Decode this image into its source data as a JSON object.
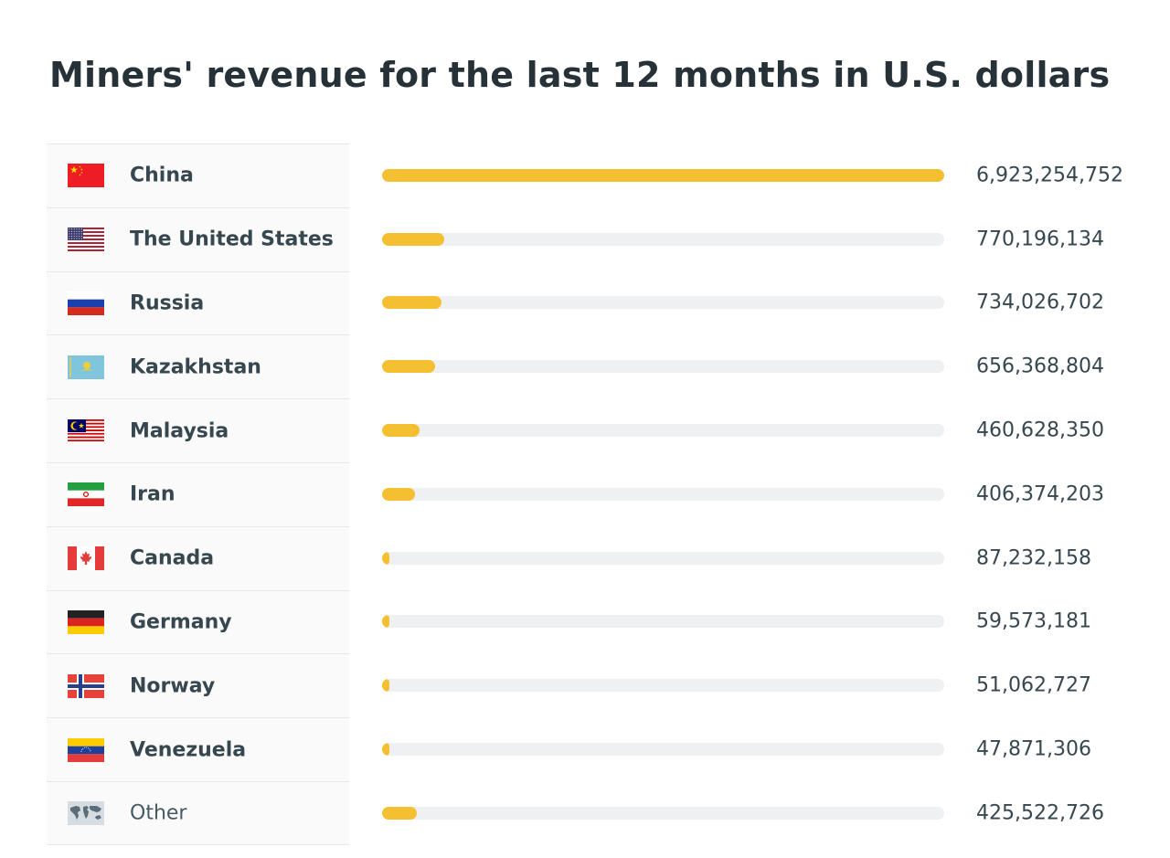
{
  "title": "Miners' revenue for the last 12 months in U.S. dollars",
  "colors": {
    "bar": "#f5bf32",
    "track": "#eef0f1",
    "label_background": "#fafafa",
    "text": "#37474f"
  },
  "chart_data": {
    "type": "bar",
    "orientation": "horizontal",
    "title": "Miners' revenue for the last 12 months in U.S. dollars",
    "categories": [
      "China",
      "The United States",
      "Russia",
      "Kazakhstan",
      "Malaysia",
      "Iran",
      "Canada",
      "Germany",
      "Norway",
      "Venezuela",
      "Other"
    ],
    "values": [
      6923254752,
      770196134,
      734026702,
      656368804,
      460628350,
      406374203,
      87232158,
      59573181,
      51062727,
      47871306,
      425522726
    ],
    "value_labels": [
      "6,923,254,752",
      "770,196,134",
      "734,026,702",
      "656,368,804",
      "460,628,350",
      "406,374,203",
      "87,232,158",
      "59,573,181",
      "51,062,727",
      "47,871,306",
      "425,522,726"
    ],
    "flags": [
      "china-flag-icon",
      "united-states-flag-icon",
      "russia-flag-icon",
      "kazakhstan-flag-icon",
      "malaysia-flag-icon",
      "iran-flag-icon",
      "canada-flag-icon",
      "germany-flag-icon",
      "norway-flag-icon",
      "venezuela-flag-icon",
      "world-map-icon"
    ],
    "xlim": [
      0,
      6923254752
    ],
    "grid": false,
    "legend": "none"
  }
}
